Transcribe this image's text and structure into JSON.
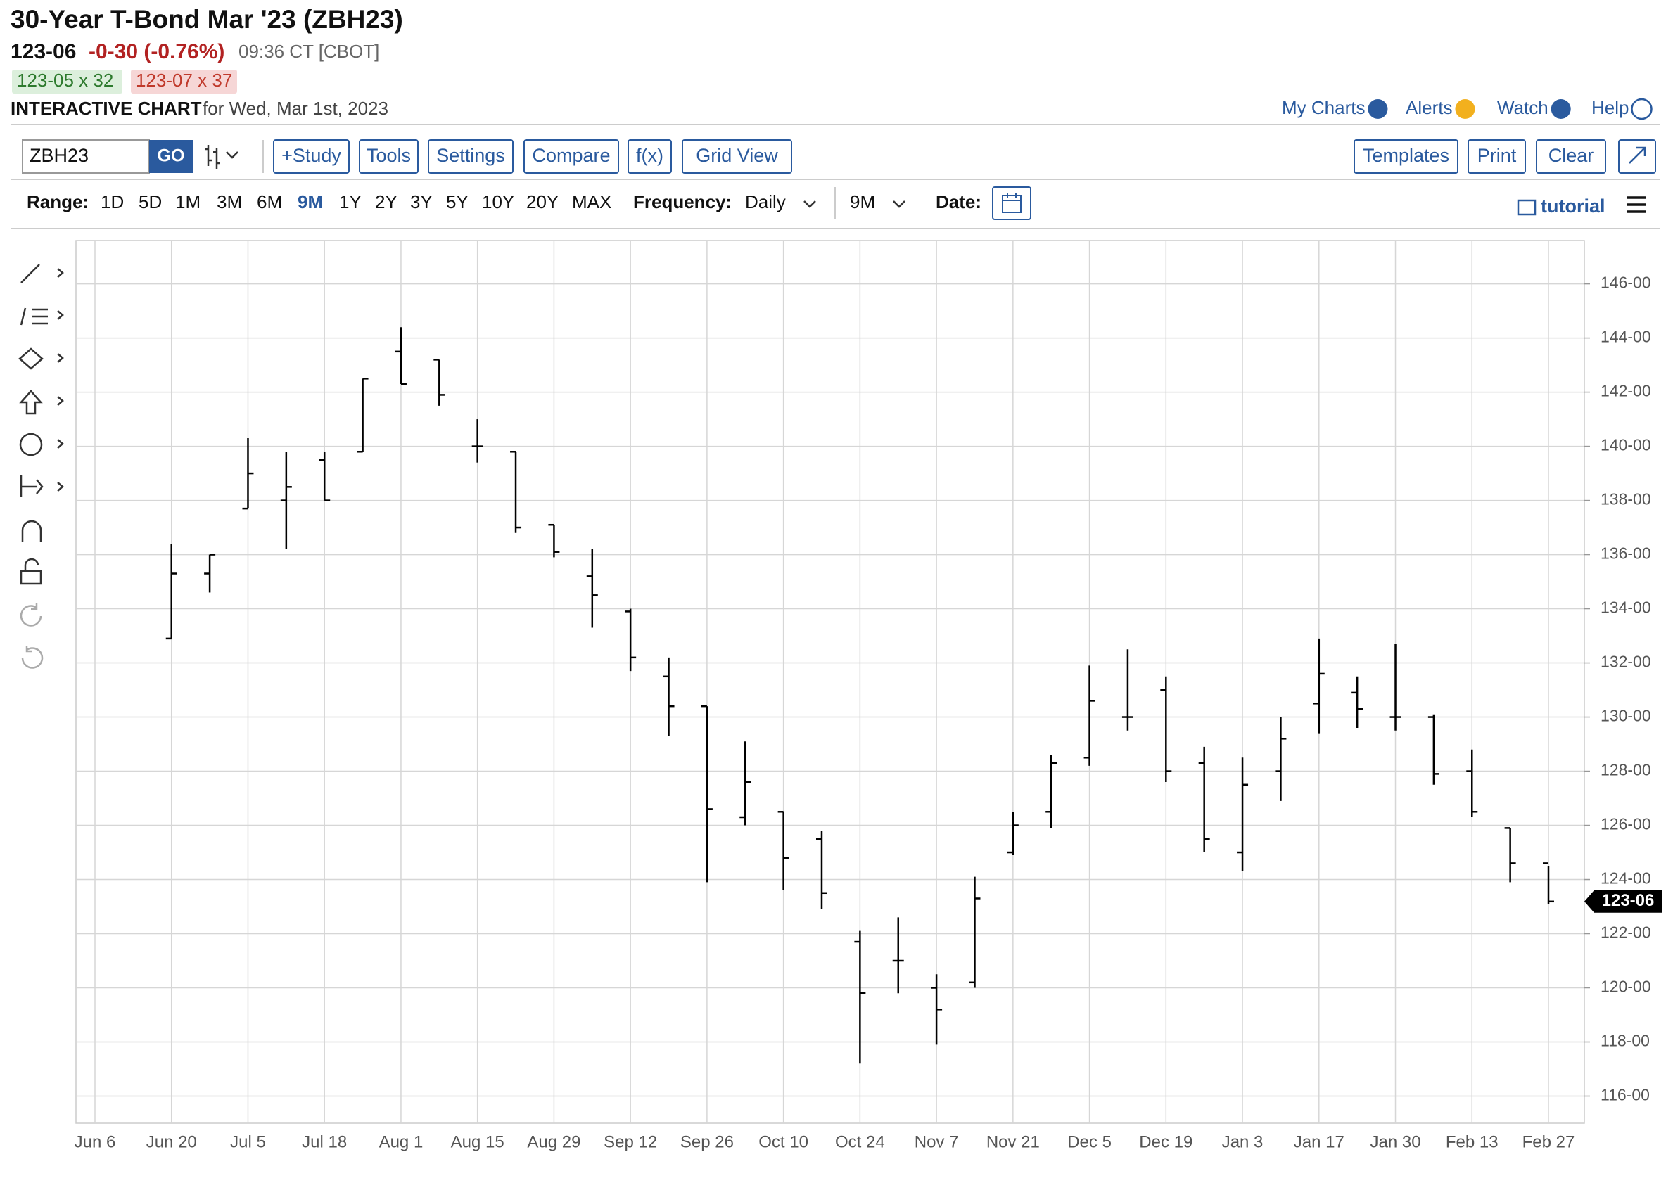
{
  "header": {
    "title": "30-Year T-Bond Mar '23 (ZBH23)",
    "last": "123-06",
    "change": "-0-30 (-0.76%)",
    "time": "09:36 CT [CBOT]",
    "bid": "123-05 x 32",
    "ask": "123-07 x 37",
    "chart_label": "INTERACTIVE CHART",
    "chart_date": "for Wed, Mar 1st, 2023"
  },
  "links": [
    "My Charts",
    "Alerts",
    "Watch",
    "Help"
  ],
  "toolbar": {
    "symbol": "ZBH23",
    "go": "GO",
    "buttons": [
      "+Study",
      "Tools",
      "Settings",
      "Compare",
      "f(x)",
      "Grid View"
    ],
    "right_buttons": [
      "Templates",
      "Print",
      "Clear"
    ]
  },
  "range": {
    "label": "Range:",
    "options": [
      "1D",
      "5D",
      "1M",
      "3M",
      "6M",
      "9M",
      "1Y",
      "2Y",
      "3Y",
      "5Y",
      "10Y",
      "20Y",
      "MAX"
    ],
    "frequency_label": "Frequency:",
    "frequency": "Daily",
    "period": "9M",
    "date_label": "Date:",
    "tutorial": "tutorial"
  },
  "chart_data": {
    "type": "ohlc",
    "color": "#000000",
    "grid": true,
    "categories": [
      "Jun 6",
      null,
      "Jun 20",
      null,
      "Jul 5",
      null,
      "Jul 18",
      null,
      "Aug 1",
      null,
      "Aug 15",
      null,
      "Aug 29",
      null,
      "Sep 12",
      null,
      "Sep 26",
      null,
      "Oct 10",
      null,
      "Oct 24",
      null,
      "Nov 7",
      null,
      "Nov 21",
      null,
      "Dec 5",
      null,
      "Dec 19",
      null,
      "Jan 3",
      null,
      "Jan 17",
      null,
      "Jan 30",
      null,
      "Feb 13",
      null,
      "Feb 27"
    ],
    "open": [
      null,
      null,
      132.9,
      135.3,
      137.7,
      138,
      139.5,
      139.8,
      143.5,
      143.2,
      140,
      139.8,
      137.1,
      135.2,
      133.9,
      131.5,
      130.4,
      126.3,
      126.5,
      125.5,
      121.7,
      121,
      120,
      120.2,
      125,
      126.5,
      128.5,
      130,
      131,
      128.3,
      125,
      128,
      130.5,
      130.9,
      130,
      130,
      128,
      125.9,
      124.6
    ],
    "high": [
      null,
      null,
      136.4,
      136,
      140.3,
      139.8,
      139.8,
      142.5,
      144.4,
      143.2,
      141,
      139.8,
      137.1,
      136.2,
      134,
      132.2,
      130.4,
      129.1,
      126.5,
      125.8,
      122.1,
      122.6,
      120.5,
      124.1,
      126.5,
      128.6,
      131.9,
      132.5,
      131.5,
      128.9,
      128.5,
      130,
      132.9,
      131.5,
      132.7,
      130.1,
      128.8,
      125.9,
      124.5
    ],
    "low": [
      null,
      null,
      132.9,
      134.6,
      137.7,
      136.2,
      138,
      139.8,
      142.3,
      141.5,
      139.4,
      136.8,
      135.9,
      133.3,
      131.7,
      129.3,
      123.9,
      126,
      123.6,
      122.9,
      117.2,
      119.8,
      117.9,
      120,
      124.9,
      125.9,
      128.2,
      129.5,
      127.6,
      125,
      124.3,
      126.9,
      129.4,
      129.6,
      129.5,
      127.5,
      126.3,
      123.9,
      123.1
    ],
    "close": [
      null,
      null,
      135.3,
      136,
      139,
      138.5,
      138,
      142.5,
      142.3,
      141.9,
      140,
      137,
      136.1,
      134.5,
      132.2,
      130.4,
      126.6,
      127.6,
      124.8,
      123.5,
      119.8,
      121,
      119.2,
      123.3,
      126,
      128.3,
      130.6,
      130,
      128,
      125.5,
      127.5,
      129.2,
      131.6,
      130.3,
      130,
      127.9,
      126.5,
      124.6,
      123.1875
    ],
    "ylim": [
      115,
      147.6
    ],
    "yticks": [
      {
        "value": 116,
        "label": "116-00"
      },
      {
        "value": 118,
        "label": "118-00"
      },
      {
        "value": 120,
        "label": "120-00"
      },
      {
        "value": 122,
        "label": "122-00"
      },
      {
        "value": 124,
        "label": "124-00"
      },
      {
        "value": 126,
        "label": "126-00"
      },
      {
        "value": 128,
        "label": "128-00"
      },
      {
        "value": 130,
        "label": "130-00"
      },
      {
        "value": 132,
        "label": "132-00"
      },
      {
        "value": 134,
        "label": "134-00"
      },
      {
        "value": 136,
        "label": "136-00"
      },
      {
        "value": 138,
        "label": "138-00"
      },
      {
        "value": 140,
        "label": "140-00"
      },
      {
        "value": 142,
        "label": "142-00"
      },
      {
        "value": 144,
        "label": "144-00"
      },
      {
        "value": 146,
        "label": "146-00"
      }
    ]
  }
}
